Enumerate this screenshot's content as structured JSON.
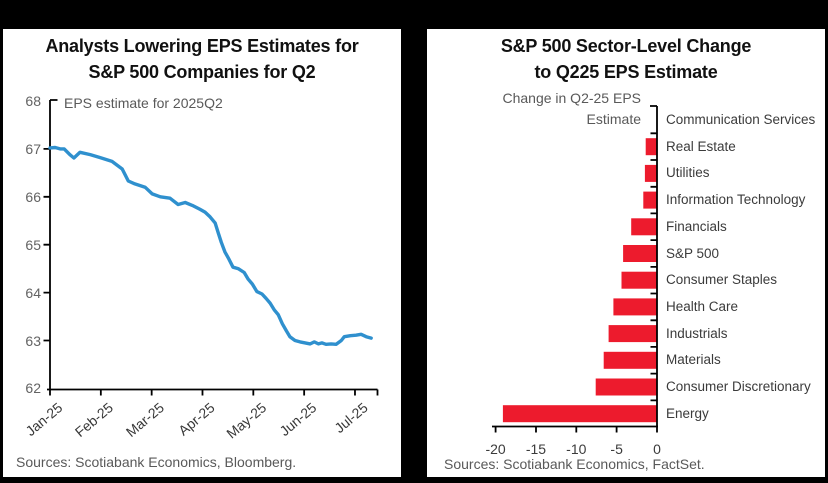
{
  "left_chart": {
    "title_line1": "Analysts Lowering EPS Estimates for",
    "title_line2": "S&P 500 Companies for Q2",
    "series_label": "EPS estimate for 2025Q2",
    "source": "Sources: Scotiabank Economics, Bloomberg."
  },
  "right_chart": {
    "title_line1": "S&P 500 Sector-Level Change",
    "title_line2": "to Q225 EPS Estimate",
    "axis_label_line1": "Change in Q2-25 EPS",
    "axis_label_line2": "Estimate",
    "source": "Sources: Scotiabank Economics, FactSet."
  },
  "colors": {
    "line_blue": "#2F90CE",
    "bar_red": "#ED1B2D",
    "axis_black": "#000000",
    "label_gray": "#595959",
    "frame_black": "#000000"
  },
  "chart_data": [
    {
      "type": "line",
      "title": "Analysts Lowering EPS Estimates for S&P 500 Companies for Q2",
      "series_label": "EPS estimate for 2025Q2",
      "xlabel": "",
      "ylabel": "",
      "x_tick_labels": [
        "Jan-25",
        "Feb-25",
        "Mar-25",
        "Apr-25",
        "May-25",
        "Jun-25",
        "Jul-25"
      ],
      "y_ticks": [
        68,
        67,
        66,
        65,
        64,
        63,
        62
      ],
      "ylim": [
        62,
        68
      ],
      "xlim_months": [
        0,
        6.45
      ],
      "grid": false,
      "points": [
        [
          0.0,
          67.02
        ],
        [
          0.1,
          67.03
        ],
        [
          0.2,
          67.0
        ],
        [
          0.28,
          67.0
        ],
        [
          0.39,
          66.88
        ],
        [
          0.47,
          66.81
        ],
        [
          0.59,
          66.93
        ],
        [
          0.79,
          66.88
        ],
        [
          0.98,
          66.82
        ],
        [
          1.22,
          66.74
        ],
        [
          1.42,
          66.58
        ],
        [
          1.54,
          66.33
        ],
        [
          1.67,
          66.27
        ],
        [
          1.87,
          66.2
        ],
        [
          2.01,
          66.06
        ],
        [
          2.17,
          66.0
        ],
        [
          2.36,
          65.97
        ],
        [
          2.52,
          65.84
        ],
        [
          2.66,
          65.88
        ],
        [
          2.8,
          65.82
        ],
        [
          2.95,
          65.74
        ],
        [
          3.05,
          65.68
        ],
        [
          3.15,
          65.58
        ],
        [
          3.25,
          65.45
        ],
        [
          3.31,
          65.25
        ],
        [
          3.37,
          65.05
        ],
        [
          3.44,
          64.85
        ],
        [
          3.52,
          64.7
        ],
        [
          3.6,
          64.53
        ],
        [
          3.7,
          64.5
        ],
        [
          3.82,
          64.42
        ],
        [
          3.9,
          64.28
        ],
        [
          3.98,
          64.18
        ],
        [
          4.07,
          64.02
        ],
        [
          4.17,
          63.97
        ],
        [
          4.25,
          63.88
        ],
        [
          4.33,
          63.78
        ],
        [
          4.41,
          63.64
        ],
        [
          4.49,
          63.54
        ],
        [
          4.57,
          63.35
        ],
        [
          4.65,
          63.2
        ],
        [
          4.72,
          63.08
        ],
        [
          4.82,
          63.0
        ],
        [
          4.92,
          62.97
        ],
        [
          5.02,
          62.95
        ],
        [
          5.12,
          62.93
        ],
        [
          5.2,
          62.97
        ],
        [
          5.28,
          62.93
        ],
        [
          5.35,
          62.95
        ],
        [
          5.43,
          62.92
        ],
        [
          5.53,
          62.93
        ],
        [
          5.63,
          62.92
        ],
        [
          5.73,
          63.0
        ],
        [
          5.79,
          63.08
        ],
        [
          5.91,
          63.1
        ],
        [
          6.02,
          63.11
        ],
        [
          6.12,
          63.13
        ],
        [
          6.22,
          63.08
        ],
        [
          6.32,
          63.05
        ]
      ]
    },
    {
      "type": "bar",
      "orientation": "horizontal",
      "title": "S&P 500 Sector-Level Change to Q225 EPS Estimate",
      "xlabel": "Change in Q2-25 EPS Estimate",
      "categories": [
        "Communication Services",
        "Real Estate",
        "Utilities",
        "Information Technology",
        "Financials",
        "S&P 500",
        "Consumer Staples",
        "Health Care",
        "Industrials",
        "Materials",
        "Consumer Discretionary",
        "Energy"
      ],
      "values": [
        0,
        -1.4,
        -1.5,
        -1.7,
        -3.2,
        -4.2,
        -4.4,
        -5.4,
        -6.0,
        -6.6,
        -7.6,
        -19.1
      ],
      "x_ticks": [
        -20,
        -15,
        -10,
        -5,
        0
      ],
      "xlim": [
        -21.5,
        0
      ],
      "grid": false,
      "legend": "none"
    }
  ]
}
